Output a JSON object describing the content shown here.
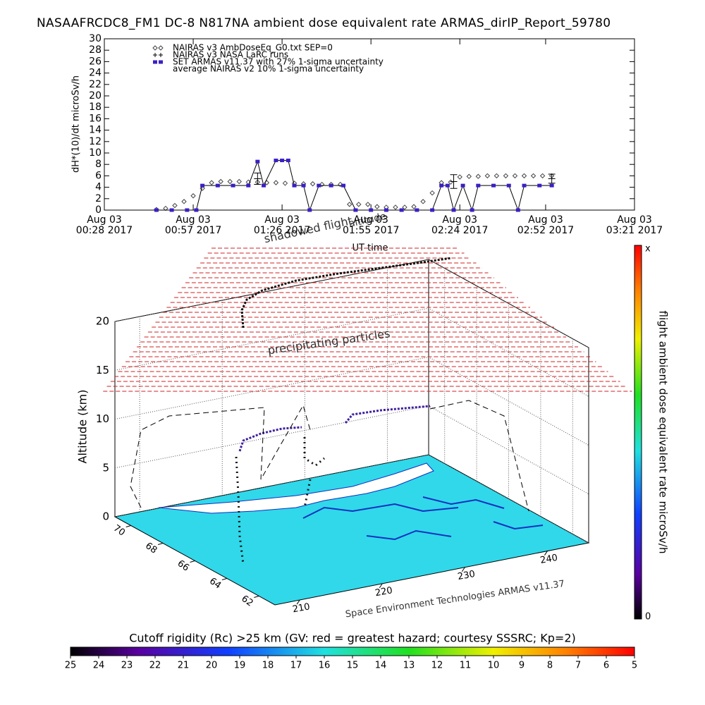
{
  "chart_data": [
    {
      "type": "scatter",
      "title": "NASAAFRCDC8_FM1 DC-8    N817NA ambient dose equivalent rate ARMAS_dirIP_Report_59780",
      "ylabel": "dH*(10)/dt microSv/h",
      "xlabel": "UT time",
      "xlim": [
        28,
        201
      ],
      "xticks": [
        {
          "value": 28,
          "label": "Aug 03\n00:28 2017"
        },
        {
          "value": 57,
          "label": "Aug 03\n00:57 2017"
        },
        {
          "value": 86,
          "label": "Aug 03\n01:26 2017"
        },
        {
          "value": 115,
          "label": "Aug 03\n01:55 2017"
        },
        {
          "value": 144,
          "label": "Aug 03\n02:24 2017"
        },
        {
          "value": 172,
          "label": "Aug 03\n02:52 2017"
        },
        {
          "value": 201,
          "label": "Aug 03\n03:21 2017"
        }
      ],
      "ylim": [
        0,
        30
      ],
      "yticks": [
        0,
        2,
        4,
        6,
        8,
        10,
        12,
        14,
        16,
        18,
        20,
        22,
        24,
        26,
        28,
        30
      ],
      "series": [
        {
          "name": "NAIRAS v3 AmbDoseEq_G0.txt SEP=0",
          "marker": "diamond",
          "color": "#444444",
          "x": [
            45,
            48,
            51,
            54,
            57,
            60,
            63,
            66,
            69,
            72,
            75,
            78,
            81,
            84,
            87,
            90,
            93,
            96,
            99,
            102,
            105,
            108,
            111,
            114,
            117,
            120,
            123,
            126,
            129,
            132,
            135,
            138,
            141,
            144,
            147,
            150,
            153,
            156,
            159,
            162,
            165,
            168,
            171,
            174
          ],
          "values": [
            0.1,
            0.3,
            0.8,
            1.5,
            2.5,
            3.8,
            4.8,
            5,
            5,
            5,
            4.9,
            4.9,
            4.8,
            4.8,
            4.7,
            4.7,
            4.6,
            4.6,
            4.5,
            4.5,
            4.5,
            1,
            1,
            1,
            0.6,
            0.5,
            0.5,
            0.5,
            0.6,
            1.5,
            3,
            4.8,
            4.9,
            5.8,
            5.9,
            5.9,
            6,
            6,
            6,
            6,
            6,
            6,
            6,
            6
          ]
        },
        {
          "name": "NAIRAS v3 NASA LaRC runs",
          "marker": "plus",
          "color": "#000000",
          "x": [
            78,
            142,
            174
          ],
          "values": [
            5.5,
            5,
            5.5
          ],
          "errors": [
            1,
            1.2,
            0.8
          ]
        },
        {
          "name": "SET ARMAS v11.37 with 27% 1-sigma uncertainty",
          "marker": "square",
          "color": "#3b1fc4",
          "x": [
            45,
            50,
            55,
            58,
            60,
            65,
            70,
            75,
            78,
            80,
            84,
            86,
            88,
            90,
            93,
            95,
            98,
            102,
            106,
            110,
            115,
            120,
            125,
            130,
            135,
            138,
            140,
            142,
            145,
            148,
            150,
            155,
            160,
            163,
            165,
            170,
            174
          ],
          "values": [
            0,
            0,
            0,
            0,
            4.3,
            4.3,
            4.3,
            4.3,
            8.5,
            4.3,
            8.7,
            8.7,
            8.7,
            4.3,
            4.3,
            0,
            4.3,
            4.3,
            4.3,
            0,
            0,
            0,
            0,
            0,
            0,
            4.3,
            4.3,
            0,
            4.3,
            0,
            4.3,
            4.3,
            4.3,
            0,
            4.3,
            4.3,
            4.3
          ]
        },
        {
          "name": "average NAIRAS v2 10% 1-sigma uncertainty",
          "marker": "none",
          "color": "#000000"
        }
      ]
    },
    {
      "type": "surface3d",
      "zlabel": "Altitude (km)",
      "zlim": [
        0,
        20
      ],
      "zticks": [
        0,
        5,
        10,
        15,
        20
      ],
      "latlim": [
        71,
        61
      ],
      "latticks": [
        70,
        68,
        66,
        64,
        62
      ],
      "lonlim": [
        207,
        245
      ],
      "lonticks": [
        210,
        220,
        230,
        240
      ],
      "annotations": [
        "precipitating particles",
        "Space Environment Technologies ARMAS v11.37",
        "shadowed flight",
        "altitude"
      ],
      "dose_colorbar": {
        "label": "flight ambient dose equivalent rate microSv/h",
        "top_label": "x",
        "bottom": 0
      },
      "rc_colorbar": {
        "title": "Cutoff rigidity (Rc) >25 km (GV: red = greatest hazard; courtesy SSSRC; Kp=2)",
        "clim": [
          25,
          5
        ],
        "cticks": [
          25,
          24,
          23,
          22,
          21,
          20,
          19,
          18,
          17,
          16,
          15,
          14,
          13,
          12,
          11,
          10,
          9,
          8,
          7,
          6,
          5
        ]
      }
    }
  ]
}
